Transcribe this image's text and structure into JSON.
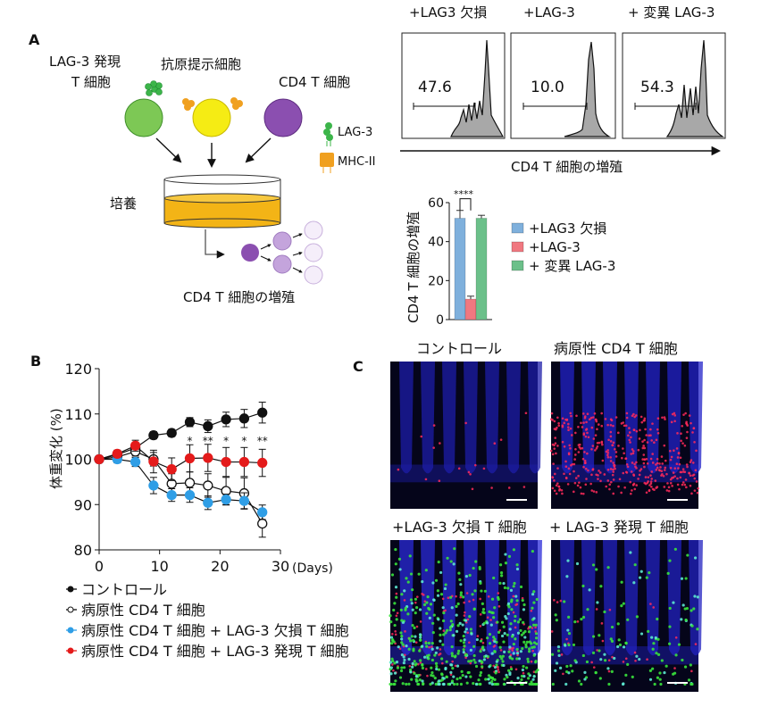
{
  "panel_labels": {
    "a": "A",
    "b": "B",
    "c": "C"
  },
  "schematic": {
    "lag3_cell_label_1": "LAG-3 発現",
    "lag3_cell_label_2": "T 細胞",
    "apc_label": "抗原提示細胞",
    "cd4_label": "CD4 T 細胞",
    "legend_lag3": "LAG-3",
    "legend_mhc": "MHC-II",
    "culture_label": "培養",
    "proliferation_label": "CD4 T 細胞の増殖",
    "colors": {
      "lag3_cell": "#7dc855",
      "apc": "#f5ec14",
      "cd4": "#8b4fb0",
      "dish": "#f3b416",
      "mhc": "#f0a020",
      "lag3": "#3cb54a"
    }
  },
  "flow": {
    "panels": [
      {
        "title": "+LAG3 欠損",
        "value": "47.6"
      },
      {
        "title": "+LAG-3",
        "value": "10.0"
      },
      {
        "title": "+ 変異 LAG-3",
        "value": "54.3"
      }
    ],
    "axis_label": "CD4 T 細胞の増殖"
  },
  "chart_data": [
    {
      "type": "bar",
      "ylabel": "CD4 T 細胞の増殖",
      "ylim": [
        0,
        60
      ],
      "yticks": [
        "0",
        "20",
        "40",
        "60"
      ],
      "categories": [
        "+LAG3 欠損",
        "+LAG-3",
        "+ 変異 LAG-3"
      ],
      "values": [
        52,
        10.5,
        52
      ],
      "errors": [
        4,
        1.5,
        1.5
      ],
      "colors": [
        "#7fb0dc",
        "#f07880",
        "#6cc08a"
      ],
      "significance": "****",
      "legend": "right"
    },
    {
      "type": "line",
      "ylabel": "体重変化 (%)",
      "xlabel": "(Days)",
      "xlim": [
        0,
        30
      ],
      "ylim": [
        80,
        120
      ],
      "xticks": [
        "0",
        "10",
        "20",
        "30"
      ],
      "yticks": [
        "80",
        "90",
        "100",
        "110",
        "120"
      ],
      "x": [
        0,
        3,
        6,
        9,
        12,
        15,
        18,
        21,
        24,
        27
      ],
      "series": [
        {
          "name": "コントロール",
          "color": "#111111",
          "fill": "filled",
          "values": [
            100,
            101,
            102.5,
            105.3,
            105.8,
            108.2,
            107.3,
            108.8,
            109,
            110.3
          ],
          "errors": [
            0.5,
            0.8,
            1,
            0.8,
            0.8,
            1,
            1.4,
            1.6,
            2,
            2.3
          ]
        },
        {
          "name": "病原性 CD4 T 細胞",
          "color": "#111111",
          "fill": "open",
          "values": [
            100,
            100.5,
            101.7,
            100,
            94.6,
            94.8,
            94.2,
            93,
            92.5,
            85.8
          ],
          "errors": [
            0.5,
            0.8,
            1,
            1.5,
            2.2,
            2.4,
            2.6,
            3,
            3.4,
            3
          ]
        },
        {
          "name": "病原性 CD4 T 細胞 + LAG-3 欠損 T 細胞",
          "color": "#2f9ee6",
          "fill": "filled",
          "values": [
            100,
            100,
            99.4,
            94.2,
            92.1,
            92.1,
            90.4,
            91.1,
            90.8,
            88.3
          ],
          "errors": [
            0.5,
            0.8,
            1,
            1.8,
            1.4,
            1.6,
            1.5,
            1.2,
            1.8,
            1.6
          ]
        },
        {
          "name": "病原性 CD4 T 細胞 + LAG-3 発現 T 細胞",
          "color": "#e41b1b",
          "fill": "filled",
          "values": [
            100,
            101.2,
            103,
            99.5,
            97.8,
            100.2,
            100.3,
            99.4,
            99.4,
            99.2
          ],
          "errors": [
            0.5,
            0.8,
            1.2,
            2.5,
            2.5,
            3,
            3,
            3.2,
            3.2,
            3
          ]
        }
      ],
      "annotations": [
        {
          "x": 15,
          "text": "*"
        },
        {
          "x": 18,
          "text": "**"
        },
        {
          "x": 21,
          "text": "*"
        },
        {
          "x": 24,
          "text": "*"
        },
        {
          "x": 27,
          "text": "**"
        }
      ]
    }
  ],
  "micro": {
    "panels": [
      {
        "title": "コントロール",
        "green": 0,
        "red": 20,
        "blue": "#1c1ca8"
      },
      {
        "title": "病原性 CD4 T 細胞",
        "green": 0,
        "red": 420,
        "blue": "#2222c8"
      },
      {
        "title": "+LAG-3 欠損 T 細胞",
        "green": 520,
        "red": 120,
        "blue": "#2a2ad8"
      },
      {
        "title": "+ LAG-3 発現 T 細胞",
        "green": 150,
        "red": 30,
        "blue": "#2222c0"
      }
    ]
  }
}
